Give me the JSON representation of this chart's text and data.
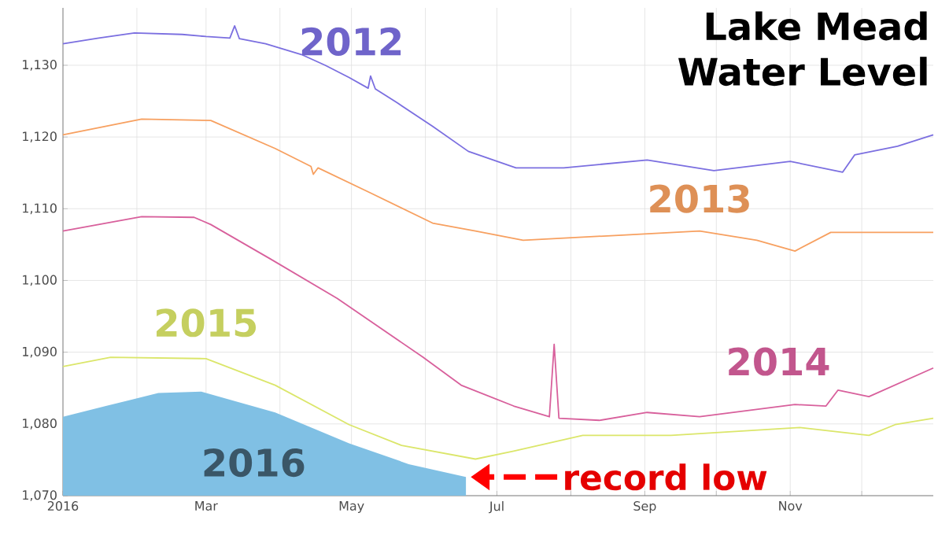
{
  "chart_data": {
    "type": "line",
    "title": "Lake Mead Water Level",
    "xlim": [
      "2016-01-01",
      "2016-12-31"
    ],
    "ylim": [
      1070,
      1138
    ],
    "xticks": [
      {
        "value": "2016-01-01",
        "label": "2016"
      },
      {
        "value": "2016-02-01",
        "label": null
      },
      {
        "value": "2016-03-01",
        "label": "Mar"
      },
      {
        "value": "2016-04-01",
        "label": null
      },
      {
        "value": "2016-05-01",
        "label": "May"
      },
      {
        "value": "2016-06-01",
        "label": null
      },
      {
        "value": "2016-07-01",
        "label": "Jul"
      },
      {
        "value": "2016-08-01",
        "label": null
      },
      {
        "value": "2016-09-01",
        "label": "Sep"
      },
      {
        "value": "2016-10-01",
        "label": null
      },
      {
        "value": "2016-11-01",
        "label": "Nov"
      },
      {
        "value": "2016-12-01",
        "label": null
      }
    ],
    "yticks": [
      {
        "value": 1070,
        "label": "1,070"
      },
      {
        "value": 1080,
        "label": "1,080"
      },
      {
        "value": 1090,
        "label": "1,090"
      },
      {
        "value": 1100,
        "label": "1,100"
      },
      {
        "value": 1110,
        "label": "1,110"
      },
      {
        "value": 1120,
        "label": "1,120"
      },
      {
        "value": 1130,
        "label": "1,130"
      }
    ],
    "grid": true,
    "marker": "none",
    "series": [
      {
        "name": "2012",
        "color": "#7b6fe0",
        "x": [
          "2016-01-01",
          "2016-01-16",
          "2016-01-31",
          "2016-02-20",
          "2016-03-01",
          "2016-03-11",
          "2016-03-13",
          "2016-03-15",
          "2016-03-26",
          "2016-04-10",
          "2016-04-20",
          "2016-04-30",
          "2016-05-08",
          "2016-05-09",
          "2016-05-11",
          "2016-05-20",
          "2016-06-04",
          "2016-06-19",
          "2016-07-09",
          "2016-07-29",
          "2016-09-02",
          "2016-09-30",
          "2016-11-01",
          "2016-11-23",
          "2016-11-28",
          "2016-12-16",
          "2016-12-31"
        ],
        "values": [
          1133,
          1133.8,
          1134.5,
          1134.3,
          1134,
          1133.8,
          1135.5,
          1133.7,
          1133,
          1131.5,
          1130,
          1128.3,
          1126.8,
          1128.5,
          1126.7,
          1124.8,
          1121.5,
          1118,
          1115.7,
          1115.7,
          1116.8,
          1115.3,
          1116.6,
          1115.1,
          1117.5,
          1118.7,
          1120.3
        ]
      },
      {
        "name": "2013",
        "color": "#f7a060",
        "x": [
          "2016-01-01",
          "2016-02-03",
          "2016-03-03",
          "2016-03-30",
          "2016-04-14",
          "2016-04-15",
          "2016-04-17",
          "2016-05-09",
          "2016-06-04",
          "2016-06-22",
          "2016-07-12",
          "2016-08-21",
          "2016-09-24",
          "2016-10-18",
          "2016-11-03",
          "2016-11-18",
          "2016-12-31"
        ],
        "values": [
          1120.3,
          1122.5,
          1122.3,
          1118.4,
          1115.9,
          1114.8,
          1115.7,
          1112.2,
          1108,
          1106.9,
          1105.6,
          1106.3,
          1106.9,
          1105.6,
          1104.1,
          1106.7,
          1106.7
        ]
      },
      {
        "name": "2014",
        "color": "#d8609c",
        "x": [
          "2016-01-01",
          "2016-02-03",
          "2016-02-25",
          "2016-03-03",
          "2016-03-28",
          "2016-04-25",
          "2016-05-31",
          "2016-06-16",
          "2016-07-08",
          "2016-07-23",
          "2016-07-25",
          "2016-07-27",
          "2016-08-13",
          "2016-09-02",
          "2016-09-24",
          "2016-11-03",
          "2016-11-16",
          "2016-11-21",
          "2016-12-04",
          "2016-12-31"
        ],
        "values": [
          1106.9,
          1108.9,
          1108.8,
          1107.8,
          1103,
          1097.5,
          1089.3,
          1085.4,
          1082.5,
          1081,
          1091.1,
          1080.8,
          1080.5,
          1081.6,
          1081,
          1082.7,
          1082.5,
          1084.7,
          1083.8,
          1087.8
        ]
      },
      {
        "name": "2015",
        "color": "#dbe66a",
        "x": [
          "2016-01-01",
          "2016-01-21",
          "2016-03-01",
          "2016-03-30",
          "2016-04-30",
          "2016-05-22",
          "2016-06-22",
          "2016-07-08",
          "2016-08-06",
          "2016-09-12",
          "2016-11-05",
          "2016-12-04",
          "2016-12-15",
          "2016-12-31"
        ],
        "values": [
          1088,
          1089.3,
          1089.1,
          1085.4,
          1079.9,
          1077,
          1075.1,
          1076.2,
          1078.4,
          1078.4,
          1079.5,
          1078.4,
          1079.9,
          1080.8
        ]
      },
      {
        "name": "2016",
        "type": "area",
        "color": "#80c0e4",
        "x": [
          "2016-01-01",
          "2016-01-19",
          "2016-02-10",
          "2016-02-28",
          "2016-03-30",
          "2016-04-30",
          "2016-05-25",
          "2016-06-18"
        ],
        "values": [
          1081,
          1082.5,
          1084.3,
          1084.5,
          1081.6,
          1077.3,
          1074.4,
          1072.6
        ]
      }
    ],
    "annotations": [
      {
        "text": "record low",
        "x": "2016-06-18",
        "y": 1072.6
      }
    ]
  }
}
